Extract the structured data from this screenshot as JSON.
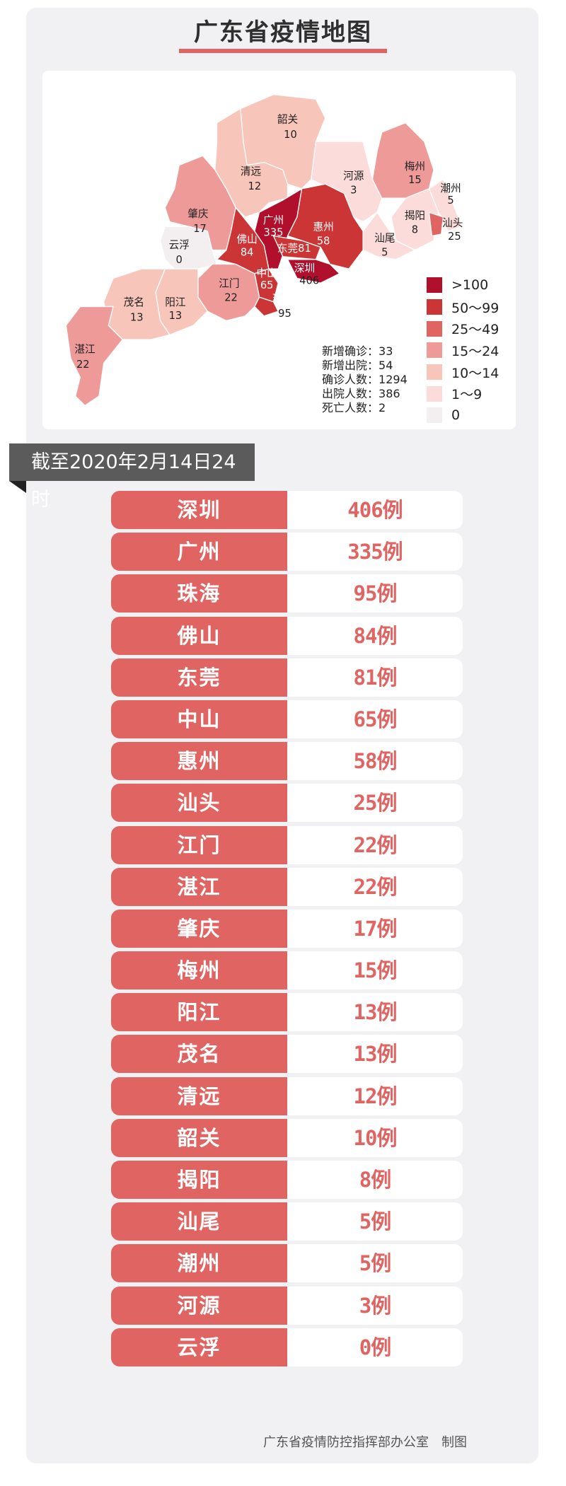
{
  "title": "广东省疫情地图",
  "legend": [
    {
      "label": ">100",
      "color": "#b0102c"
    },
    {
      "label": "50～99",
      "color": "#cc3535"
    },
    {
      "label": "25～49",
      "color": "#e06461"
    },
    {
      "label": "15～24",
      "color": "#ee9a99"
    },
    {
      "label": "10～14",
      "color": "#f8c5ba"
    },
    {
      "label": "1～9",
      "color": "#fbdcda"
    },
    {
      "label": "0",
      "color": "#f3eff1"
    }
  ],
  "stats": [
    {
      "label": "新增确诊",
      "value": "33"
    },
    {
      "label": "新增出院",
      "value": "54"
    },
    {
      "label": "确诊人数",
      "value": "1294"
    },
    {
      "label": "出院人数",
      "value": "386"
    },
    {
      "label": "死亡人数",
      "value": "2"
    }
  ],
  "map": {
    "韶关": {
      "name": "韶关",
      "count": "10",
      "color": "#f8c5ba"
    },
    "清远": {
      "name": "清远",
      "count": "12",
      "color": "#f8c5ba"
    },
    "肇庆": {
      "name": "肇庆",
      "count": "17",
      "color": "#ee9a99"
    },
    "云浮": {
      "name": "云浮",
      "count": "0",
      "color": "#f3eff1"
    },
    "河源": {
      "name": "河源",
      "count": "3",
      "color": "#fbdcda"
    },
    "梅州": {
      "name": "梅州",
      "count": "15",
      "color": "#ee9a99"
    },
    "潮州": {
      "name": "潮州",
      "count": "5",
      "color": "#fbdcda"
    },
    "揭阳": {
      "name": "揭阳",
      "count": "8",
      "color": "#fbdcda"
    },
    "汕头": {
      "name": "汕头",
      "count": "25",
      "color": "#e06461"
    },
    "汕尾": {
      "name": "汕尾",
      "count": "5",
      "color": "#fbdcda"
    },
    "惠州": {
      "name": "惠州",
      "count": "58",
      "color": "#cc3535"
    },
    "广州": {
      "name": "广州",
      "count": "335",
      "color": "#b0102c"
    },
    "东莞": {
      "name": "东莞",
      "count": "81",
      "color": "#cc3535"
    },
    "深圳": {
      "name": "深圳",
      "count": "406",
      "color": "#b0102c"
    },
    "佛山": {
      "name": "佛山",
      "count": "84",
      "color": "#cc3535"
    },
    "中山": {
      "name": "中山",
      "count": "65",
      "color": "#cc3535"
    },
    "珠海": {
      "name": "珠海",
      "count": "95",
      "color": "#cc3535"
    },
    "江门": {
      "name": "江门",
      "count": "22",
      "color": "#ee9a99"
    },
    "阳江": {
      "name": "阳江",
      "count": "13",
      "color": "#f8c5ba"
    },
    "茂名": {
      "name": "茂名",
      "count": "13",
      "color": "#f8c5ba"
    },
    "湛江": {
      "name": "湛江",
      "count": "22",
      "color": "#ee9a99"
    }
  },
  "date_banner": "截至2020年2月14日24时",
  "rows": [
    {
      "city": "深圳",
      "count": "406例"
    },
    {
      "city": "广州",
      "count": "335例"
    },
    {
      "city": "珠海",
      "count": "95例"
    },
    {
      "city": "佛山",
      "count": "84例"
    },
    {
      "city": "东莞",
      "count": "81例"
    },
    {
      "city": "中山",
      "count": "65例"
    },
    {
      "city": "惠州",
      "count": "58例"
    },
    {
      "city": "汕头",
      "count": "25例"
    },
    {
      "city": "江门",
      "count": "22例"
    },
    {
      "city": "湛江",
      "count": "22例"
    },
    {
      "city": "肇庆",
      "count": "17例"
    },
    {
      "city": "梅州",
      "count": "15例"
    },
    {
      "city": "阳江",
      "count": "13例"
    },
    {
      "city": "茂名",
      "count": "13例"
    },
    {
      "city": "清远",
      "count": "12例"
    },
    {
      "city": "韶关",
      "count": "10例"
    },
    {
      "city": "揭阳",
      "count": "8例"
    },
    {
      "city": "汕尾",
      "count": "5例"
    },
    {
      "city": "潮州",
      "count": "5例"
    },
    {
      "city": "河源",
      "count": "3例"
    },
    {
      "city": "云浮",
      "count": "0例"
    }
  ],
  "footer": {
    "org": "广东省疫情防控指挥部办公室",
    "suffix": "制图"
  }
}
